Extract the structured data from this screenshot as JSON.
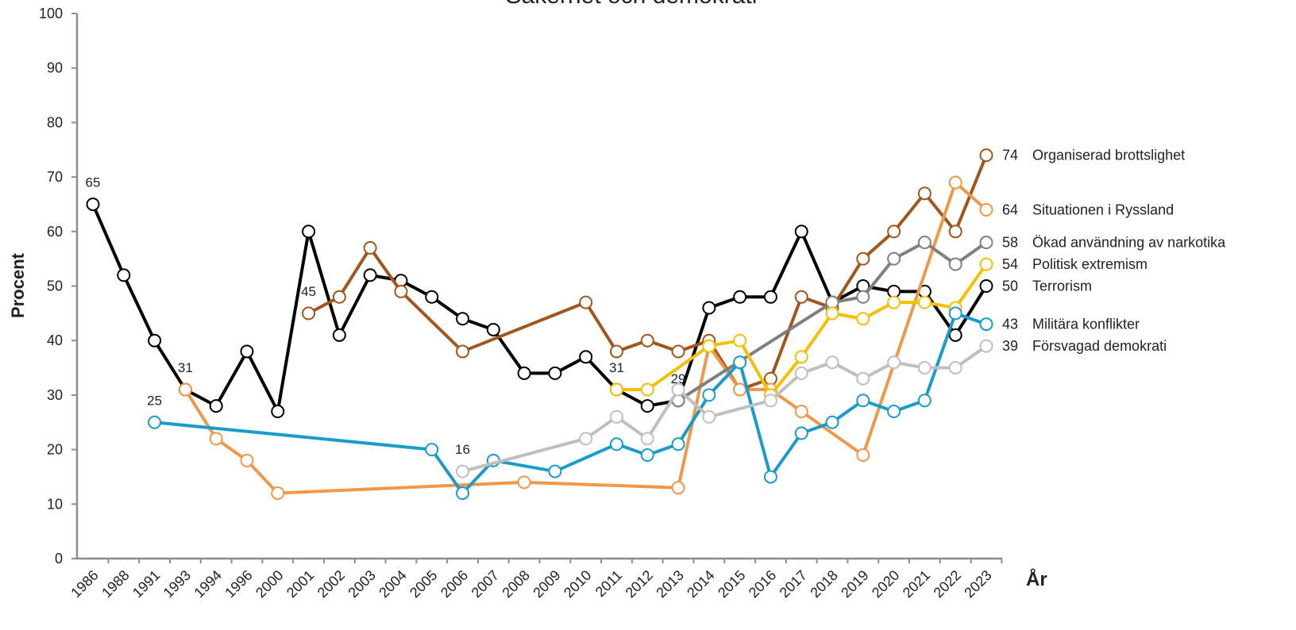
{
  "chart_data": {
    "type": "line",
    "title": "Säkerhet och demokrati",
    "ylabel": "Procent",
    "xlabel": "År",
    "categories": [
      "1986",
      "1988",
      "1991",
      "1993",
      "1994",
      "1996",
      "2000",
      "2001",
      "2002",
      "2003",
      "2004",
      "2005",
      "2006",
      "2007",
      "2008",
      "2009",
      "2010",
      "2011",
      "2012",
      "2013",
      "2014",
      "2015",
      "2016",
      "2017",
      "2018",
      "2019",
      "2020",
      "2021",
      "2022",
      "2023"
    ],
    "ylim": [
      0,
      100
    ],
    "yticks": [
      0,
      10,
      20,
      30,
      40,
      50,
      60,
      70,
      80,
      90,
      100
    ],
    "grid": false,
    "series": [
      {
        "name": "Organiserad brottslighet",
        "color": "#a0561c",
        "x": [
          "2001",
          "2002",
          "2003",
          "2004",
          "2006",
          "2010",
          "2011",
          "2012",
          "2013",
          "2014",
          "2015",
          "2016",
          "2017",
          "2018",
          "2019",
          "2020",
          "2021",
          "2022",
          "2023"
        ],
        "values": [
          45,
          48,
          57,
          49,
          38,
          47,
          38,
          40,
          38,
          40,
          31,
          33,
          48,
          46,
          55,
          60,
          67,
          60,
          74
        ]
      },
      {
        "name": "Situationen i Ryssland",
        "color": "#f0974a",
        "x": [
          "1993",
          "1994",
          "1996",
          "2000",
          "2008",
          "2013",
          "2014",
          "2015",
          "2016",
          "2017",
          "2019",
          "2022",
          "2023"
        ],
        "values": [
          31,
          22,
          18,
          12,
          14,
          13,
          39,
          31,
          31,
          27,
          19,
          69,
          64
        ]
      },
      {
        "name": "Ökad användning av narkotika",
        "color": "#7f7f7f",
        "x": [
          "2013",
          "2018",
          "2019",
          "2020",
          "2021",
          "2022",
          "2023"
        ],
        "values": [
          29,
          47,
          48,
          55,
          58,
          54,
          58
        ]
      },
      {
        "name": "Politisk extremism",
        "color": "#f5c000",
        "x": [
          "2011",
          "2012",
          "2014",
          "2015",
          "2016",
          "2017",
          "2018",
          "2019",
          "2020",
          "2021",
          "2022",
          "2023"
        ],
        "values": [
          31,
          31,
          39,
          40,
          30,
          37,
          45,
          44,
          47,
          47,
          46,
          54
        ]
      },
      {
        "name": "Terrorism",
        "color": "#000000",
        "x": [
          "1986",
          "1988",
          "1991",
          "1993",
          "1994",
          "1996",
          "2000",
          "2001",
          "2002",
          "2003",
          "2004",
          "2005",
          "2006",
          "2007",
          "2008",
          "2009",
          "2010",
          "2011",
          "2012",
          "2013",
          "2014",
          "2015",
          "2016",
          "2017",
          "2018",
          "2019",
          "2020",
          "2021",
          "2022",
          "2023"
        ],
        "values": [
          65,
          52,
          40,
          31,
          28,
          38,
          27,
          60,
          41,
          52,
          51,
          48,
          44,
          42,
          34,
          34,
          37,
          31,
          28,
          29,
          46,
          48,
          48,
          60,
          47,
          50,
          49,
          49,
          41,
          50
        ]
      },
      {
        "name": "Militära konflikter",
        "color": "#1a9bc9",
        "x": [
          "1991",
          "2005",
          "2006",
          "2007",
          "2009",
          "2011",
          "2012",
          "2013",
          "2014",
          "2015",
          "2016",
          "2017",
          "2018",
          "2019",
          "2020",
          "2021",
          "2022",
          "2023"
        ],
        "values": [
          25,
          20,
          12,
          18,
          16,
          21,
          19,
          21,
          30,
          36,
          15,
          23,
          25,
          29,
          27,
          29,
          45,
          43
        ]
      },
      {
        "name": "Försvagad demokrati",
        "color": "#bfbfbf",
        "x": [
          "2006",
          "2010",
          "2011",
          "2012",
          "2013",
          "2014",
          "2016",
          "2017",
          "2018",
          "2019",
          "2020",
          "2021",
          "2022",
          "2023"
        ],
        "values": [
          16,
          22,
          26,
          22,
          31,
          26,
          29,
          34,
          36,
          33,
          36,
          35,
          35,
          39
        ]
      }
    ]
  }
}
